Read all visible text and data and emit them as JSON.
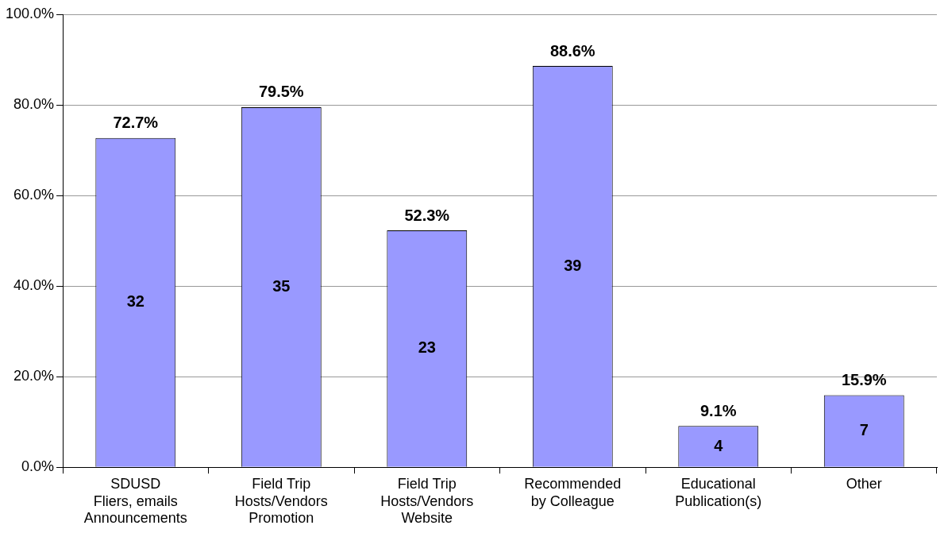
{
  "chart_data": {
    "type": "bar",
    "categories": [
      "SDUSD\nFliers, emails\nAnnouncements",
      "Field Trip\nHosts/Vendors\nPromotion",
      "Field Trip\nHosts/Vendors\nWebsite",
      "Recommended\nby Colleague",
      "Educational\nPublication(s)",
      "Other"
    ],
    "values": [
      72.7,
      79.5,
      52.3,
      88.6,
      9.1,
      15.9
    ],
    "value_labels": [
      "72.7%",
      "79.5%",
      "52.3%",
      "88.6%",
      "9.1%",
      "15.9%"
    ],
    "color": "#9999ff",
    "ylim": [
      0,
      100
    ],
    "yticks": [
      {
        "value": 0,
        "label": "0.0%"
      },
      {
        "value": 20,
        "label": "20.0%"
      },
      {
        "value": 40,
        "label": "40.0%"
      },
      {
        "value": 60,
        "label": "60.0%"
      },
      {
        "value": 80,
        "label": "80.0%"
      },
      {
        "value": 100,
        "label": "100.0%"
      }
    ],
    "grid": "y",
    "legend": false,
    "annotations": [
      "32",
      "35",
      "23",
      "39",
      "4",
      "7"
    ]
  }
}
